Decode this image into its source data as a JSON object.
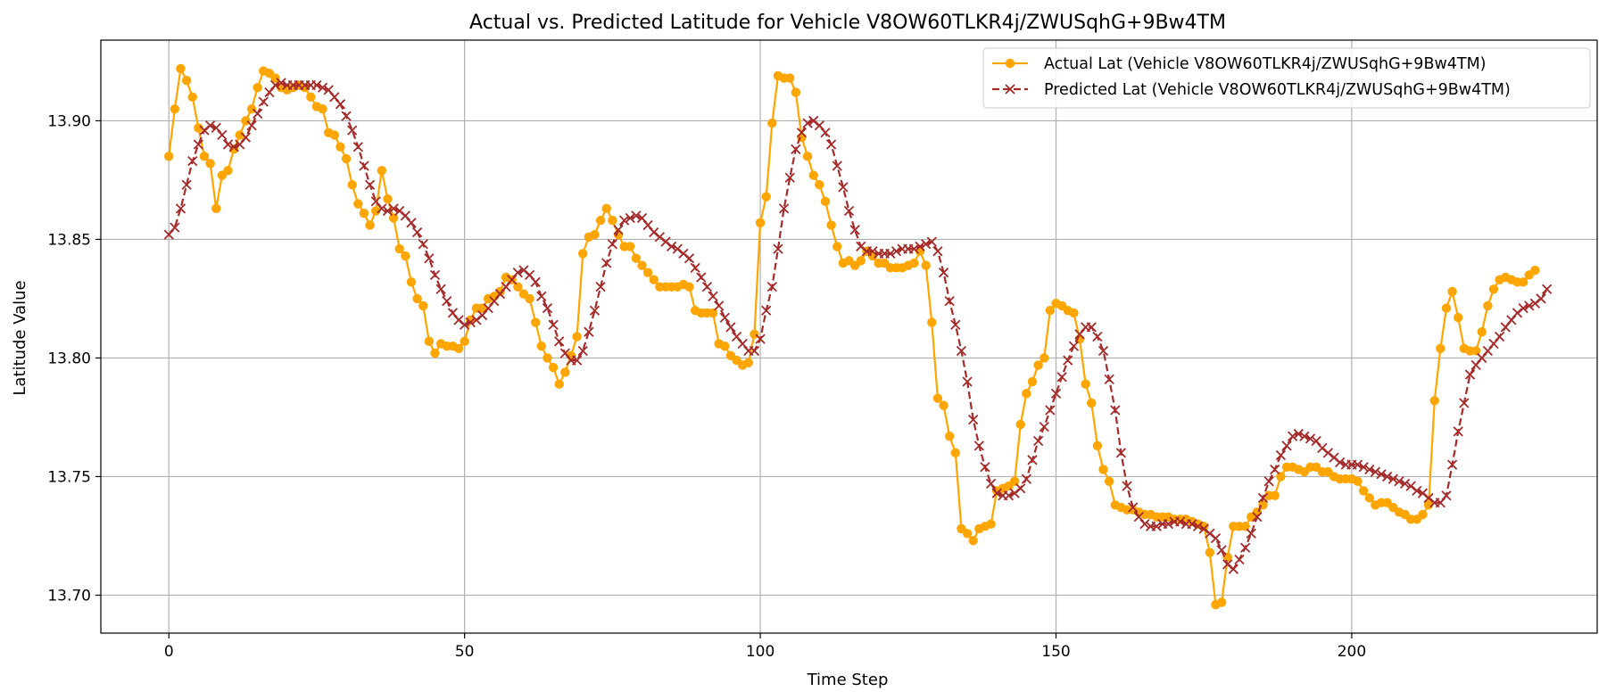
{
  "chart_data": {
    "type": "line",
    "title": "Actual vs. Predicted Latitude for Vehicle V8OW60TLKR4j/ZWUSqhG+9Bw4TM",
    "xlabel": "Time Step",
    "ylabel": "Latitude Value",
    "xlim": [
      -11.5,
      241.5
    ],
    "ylim": [
      13.684,
      13.934
    ],
    "xticks": [
      0,
      50,
      100,
      150,
      200
    ],
    "yticks": [
      13.7,
      13.75,
      13.8,
      13.85,
      13.9
    ],
    "xtick_labels": [
      "0",
      "50",
      "100",
      "150",
      "200"
    ],
    "ytick_labels": [
      "13.70",
      "13.75",
      "13.80",
      "13.85",
      "13.90"
    ],
    "grid": true,
    "legend_position": "top-right",
    "series": [
      {
        "name": "Actual Lat (Vehicle V8OW60TLKR4j/ZWUSqhG+9Bw4TM)",
        "color": "#FFA500",
        "marker": "circle",
        "linestyle": "solid",
        "values": [
          13.885,
          13.905,
          13.922,
          13.917,
          13.91,
          13.897,
          13.885,
          13.882,
          13.863,
          13.877,
          13.879,
          13.888,
          13.894,
          13.9,
          13.905,
          13.914,
          13.921,
          13.92,
          13.918,
          13.914,
          13.913,
          13.914,
          13.915,
          13.914,
          13.91,
          13.906,
          13.905,
          13.895,
          13.894,
          13.889,
          13.884,
          13.873,
          13.865,
          13.861,
          13.856,
          13.862,
          13.879,
          13.867,
          13.859,
          13.846,
          13.843,
          13.832,
          13.825,
          13.822,
          13.807,
          13.802,
          13.806,
          13.805,
          13.805,
          13.804,
          13.807,
          13.816,
          13.821,
          13.821,
          13.825,
          13.826,
          13.828,
          13.834,
          13.833,
          13.83,
          13.827,
          13.825,
          13.815,
          13.805,
          13.8,
          13.796,
          13.789,
          13.794,
          13.801,
          13.809,
          13.844,
          13.851,
          13.852,
          13.858,
          13.863,
          13.858,
          13.852,
          13.847,
          13.847,
          13.842,
          13.839,
          13.836,
          13.833,
          13.83,
          13.83,
          13.83,
          13.83,
          13.831,
          13.83,
          13.82,
          13.819,
          13.819,
          13.819,
          13.806,
          13.805,
          13.801,
          13.799,
          13.797,
          13.798,
          13.81,
          13.857,
          13.868,
          13.899,
          13.919,
          13.918,
          13.918,
          13.912,
          13.893,
          13.885,
          13.877,
          13.873,
          13.866,
          13.856,
          13.847,
          13.84,
          13.841,
          13.839,
          13.841,
          13.845,
          13.843,
          13.84,
          13.84,
          13.838,
          13.838,
          13.838,
          13.839,
          13.84,
          13.845,
          13.839,
          13.815,
          13.783,
          13.78,
          13.767,
          13.76,
          13.728,
          13.726,
          13.723,
          13.728,
          13.729,
          13.73,
          13.744,
          13.745,
          13.746,
          13.748,
          13.772,
          13.785,
          13.79,
          13.797,
          13.8,
          13.82,
          13.823,
          13.822,
          13.82,
          13.819,
          13.808,
          13.789,
          13.781,
          13.763,
          13.753,
          13.748,
          13.738,
          13.737,
          13.736,
          13.736,
          13.735,
          13.734,
          13.734,
          13.733,
          13.733,
          13.733,
          13.732,
          13.732,
          13.732,
          13.731,
          13.73,
          13.729,
          13.718,
          13.696,
          13.697,
          13.716,
          13.729,
          13.729,
          13.729,
          13.733,
          13.735,
          13.738,
          13.742,
          13.742,
          13.75,
          13.754,
          13.754,
          13.753,
          13.752,
          13.754,
          13.754,
          13.752,
          13.752,
          13.75,
          13.749,
          13.749,
          13.749,
          13.748,
          13.744,
          13.741,
          13.738,
          13.739,
          13.739,
          13.737,
          13.735,
          13.734,
          13.732,
          13.732,
          13.734,
          13.738,
          13.782,
          13.804,
          13.821,
          13.828,
          13.817,
          13.804,
          13.803,
          13.803,
          13.811,
          13.822,
          13.829,
          13.833,
          13.834,
          13.833,
          13.832,
          13.832,
          13.835,
          13.837
        ]
      },
      {
        "name": "Predicted Lat (Vehicle V8OW60TLKR4j/ZWUSqhG+9Bw4TM)",
        "color": "#A52A2A",
        "marker": "x",
        "linestyle": "dashed",
        "values": [
          13.852,
          13.855,
          13.863,
          13.873,
          13.883,
          13.89,
          13.896,
          13.898,
          13.897,
          13.894,
          13.89,
          13.889,
          13.89,
          13.893,
          13.898,
          13.903,
          13.908,
          13.912,
          13.915,
          13.916,
          13.915,
          13.915,
          13.915,
          13.915,
          13.915,
          13.915,
          13.914,
          13.913,
          13.91,
          13.907,
          13.902,
          13.896,
          13.889,
          13.881,
          13.873,
          13.866,
          13.863,
          13.862,
          13.863,
          13.862,
          13.86,
          13.857,
          13.853,
          13.848,
          13.842,
          13.835,
          13.829,
          13.824,
          13.819,
          13.816,
          13.814,
          13.815,
          13.816,
          13.818,
          13.821,
          13.824,
          13.827,
          13.83,
          13.833,
          13.836,
          13.837,
          13.835,
          13.832,
          13.826,
          13.821,
          13.814,
          13.807,
          13.802,
          13.799,
          13.799,
          13.803,
          13.811,
          13.82,
          13.83,
          13.84,
          13.848,
          13.854,
          13.858,
          13.859,
          13.86,
          13.859,
          13.856,
          13.853,
          13.851,
          13.849,
          13.847,
          13.846,
          13.844,
          13.842,
          13.838,
          13.834,
          13.83,
          13.826,
          13.822,
          13.817,
          13.813,
          13.809,
          13.806,
          13.803,
          13.803,
          13.808,
          13.82,
          13.83,
          13.846,
          13.863,
          13.876,
          13.888,
          13.895,
          13.899,
          13.9,
          13.898,
          13.895,
          13.89,
          13.881,
          13.872,
          13.862,
          13.854,
          13.847,
          13.845,
          13.845,
          13.844,
          13.844,
          13.844,
          13.845,
          13.846,
          13.846,
          13.846,
          13.847,
          13.848,
          13.849,
          13.845,
          13.836,
          13.824,
          13.814,
          13.803,
          13.79,
          13.774,
          13.763,
          13.754,
          13.747,
          13.743,
          13.742,
          13.742,
          13.743,
          13.745,
          13.749,
          13.757,
          13.765,
          13.771,
          13.778,
          13.785,
          13.792,
          13.799,
          13.805,
          13.81,
          13.813,
          13.813,
          13.809,
          13.803,
          13.791,
          13.778,
          13.76,
          13.746,
          13.737,
          13.733,
          13.73,
          13.729,
          13.729,
          13.73,
          13.73,
          13.731,
          13.731,
          13.73,
          13.73,
          13.729,
          13.728,
          13.726,
          13.724,
          13.719,
          13.713,
          13.711,
          13.715,
          13.72,
          13.726,
          13.733,
          13.741,
          13.748,
          13.753,
          13.759,
          13.763,
          13.767,
          13.768,
          13.767,
          13.766,
          13.765,
          13.762,
          13.76,
          13.758,
          13.756,
          13.755,
          13.755,
          13.755,
          13.754,
          13.753,
          13.752,
          13.751,
          13.75,
          13.749,
          13.748,
          13.747,
          13.746,
          13.744,
          13.743,
          13.741,
          13.739,
          13.739,
          13.742,
          13.755,
          13.769,
          13.781,
          13.793,
          13.797,
          13.8,
          13.803,
          13.806,
          13.809,
          13.813,
          13.816,
          13.819,
          13.821,
          13.822,
          13.823,
          13.825,
          13.829
        ]
      }
    ]
  }
}
